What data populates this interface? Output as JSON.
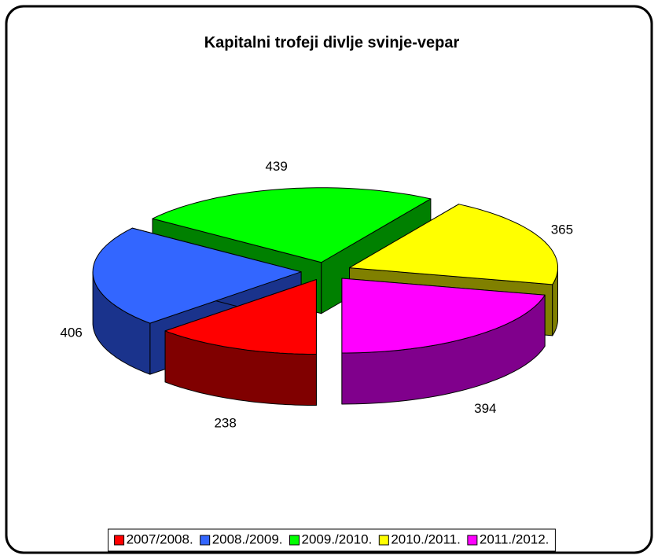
{
  "chart_data": {
    "type": "pie3d",
    "title": "Kapitalni trofeji divlje svinje-vepar",
    "categories": [
      "2007/2008.",
      "2008./2009.",
      "2009./2010.",
      "2010./2011.",
      "2011./2012."
    ],
    "values": [
      238,
      406,
      439,
      365,
      394
    ],
    "colors": [
      "#ff0000",
      "#3366ff",
      "#00ff00",
      "#ffff00",
      "#ff00ff"
    ],
    "legend": "bottom"
  }
}
